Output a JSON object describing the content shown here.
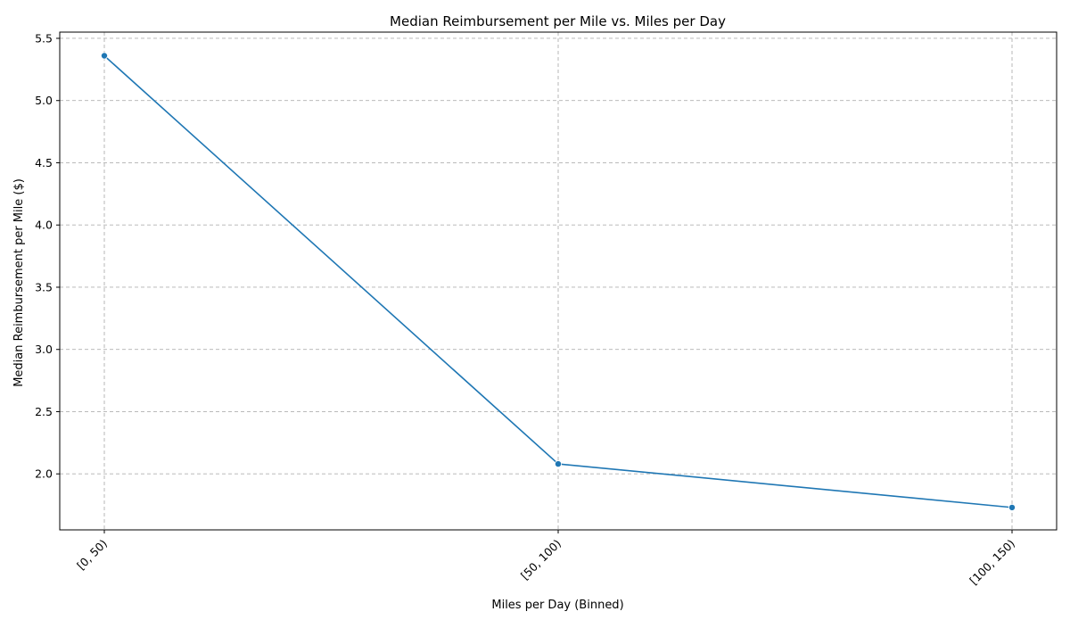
{
  "chart_data": {
    "type": "line",
    "title": "Median Reimbursement per Mile vs. Miles per Day",
    "xlabel": "Miles per Day (Binned)",
    "ylabel": "Median Reimbursement per Mile ($)",
    "categories": [
      "[0, 50)",
      "[50, 100)",
      "[100, 150)"
    ],
    "series": [
      {
        "values": [
          5.36,
          2.08,
          1.73
        ],
        "color": "#1f77b4",
        "marker": "circle"
      }
    ],
    "ylim": [
      1.55,
      5.55
    ],
    "yticks": [
      2.0,
      2.5,
      3.0,
      3.5,
      4.0,
      4.5,
      5.0,
      5.5
    ],
    "ytick_labels": [
      "2.0",
      "2.5",
      "3.0",
      "3.5",
      "4.0",
      "4.5",
      "5.0",
      "5.5"
    ],
    "xtick_rotation_deg": 45,
    "grid": true,
    "grid_style": "dashed",
    "legend": "none"
  }
}
